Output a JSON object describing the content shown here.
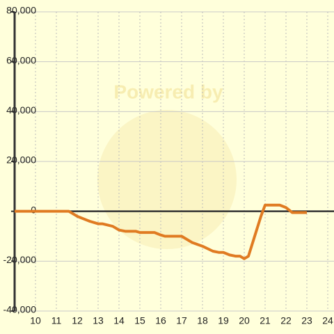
{
  "chart_data": {
    "type": "line",
    "watermark": "Powered by",
    "x": [
      9.0,
      11.6,
      12.0,
      12.6,
      13.0,
      13.2,
      13.7,
      14.0,
      14.3,
      14.8,
      15.0,
      15.7,
      16.0,
      16.2,
      17.0,
      17.5,
      18.0,
      18.5,
      18.8,
      19.0,
      19.3,
      19.6,
      19.8,
      20.0,
      20.2,
      20.5,
      20.8,
      21.0,
      21.7,
      22.0,
      22.3,
      22.5,
      23.0
    ],
    "series": [
      {
        "color": "#e07b22",
        "values": [
          0,
          0,
          -2000,
          -4000,
          -5000,
          -5000,
          -6000,
          -7500,
          -8000,
          -8000,
          -8500,
          -8500,
          -9500,
          -10000,
          -10000,
          -12500,
          -14000,
          -16000,
          -16500,
          -16500,
          -17500,
          -18000,
          -18000,
          -19000,
          -18000,
          -10000,
          -2000,
          2500,
          2500,
          1500,
          -500,
          -500,
          -500
        ]
      }
    ],
    "xlim": [
      9.0,
      24.3
    ],
    "xticks": [
      10,
      11,
      12,
      13,
      14,
      15,
      16,
      17,
      18,
      19,
      20,
      21,
      22,
      23,
      24
    ],
    "ylim": [
      -40000,
      80000
    ],
    "yticks": [
      {
        "value": -40000,
        "label": "-40,000"
      },
      {
        "value": -20000,
        "label": "-20,000"
      },
      0,
      {
        "value": 20000,
        "label": "20,000"
      },
      {
        "value": 40000,
        "label": "40,000"
      },
      {
        "value": 60000,
        "label": "60,000"
      },
      {
        "value": 80000,
        "label": "80,000"
      }
    ],
    "grid": true
  }
}
